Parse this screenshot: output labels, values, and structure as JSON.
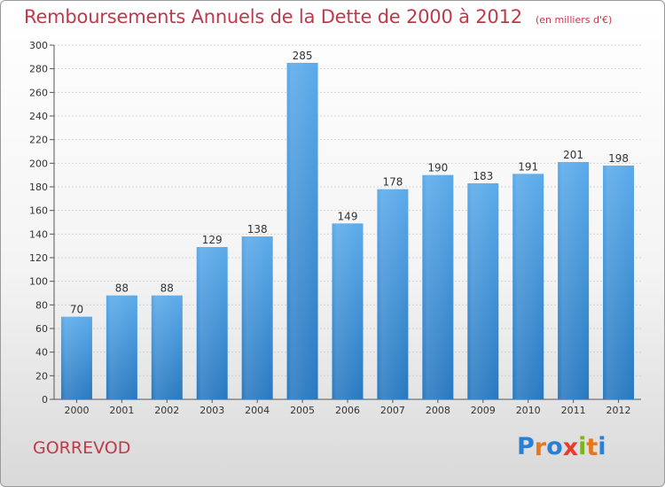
{
  "chart_data": {
    "type": "bar",
    "title": "Remboursements Annuels de la Dette de 2000 à 2012",
    "subtitle": "(en milliers d'€)",
    "categories": [
      "2000",
      "2001",
      "2002",
      "2003",
      "2004",
      "2005",
      "2006",
      "2007",
      "2008",
      "2009",
      "2010",
      "2011",
      "2012"
    ],
    "values": [
      70,
      88,
      88,
      129,
      138,
      285,
      149,
      178,
      190,
      183,
      191,
      201,
      198
    ],
    "ylim": [
      0,
      300
    ],
    "yticks": [
      0,
      20,
      40,
      60,
      80,
      100,
      120,
      140,
      160,
      180,
      200,
      220,
      240,
      260,
      280,
      300
    ],
    "grid": true,
    "bar_color": "#3a8fd6",
    "xlabel": "",
    "ylabel": ""
  },
  "commune": "GORREVOD",
  "logo": {
    "text": "Proxiti",
    "letters": [
      "P",
      "r",
      "o",
      "x",
      "i",
      "t",
      "i"
    ],
    "colors": [
      "#2a7fd4",
      "#e8761c",
      "#2a7fd4",
      "#e63b2e",
      "#7ab51d",
      "#e8761c",
      "#2a7fd4"
    ]
  }
}
